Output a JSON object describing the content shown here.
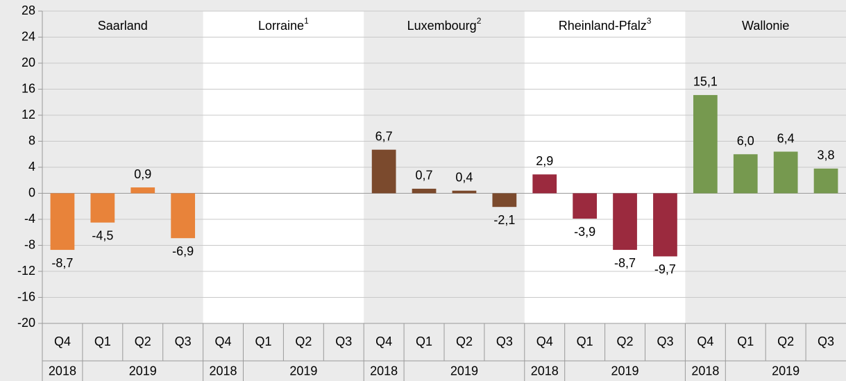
{
  "chart_data": {
    "type": "bar",
    "categories": [
      "Q4",
      "Q1",
      "Q2",
      "Q3"
    ],
    "years": [
      "2018",
      "2019"
    ],
    "ylim": [
      -20,
      28
    ],
    "yticks": [
      -20,
      -16,
      -12,
      -8,
      -4,
      0,
      4,
      8,
      12,
      16,
      20,
      24,
      28
    ],
    "grid": true,
    "series": [
      {
        "name": "Saarland",
        "color": "#e8833a",
        "values": [
          -8.7,
          -4.5,
          0.9,
          -6.9
        ],
        "value_labels": [
          "-8,7",
          "-4,5",
          "0,9",
          "-6,9"
        ]
      },
      {
        "name": "Lorraine",
        "note": "1",
        "color": "#e8833a",
        "values": [
          null,
          null,
          null,
          null
        ]
      },
      {
        "name": "Luxembourg",
        "note": "2",
        "color": "#7b4a2d",
        "values": [
          6.7,
          0.7,
          0.4,
          -2.1
        ],
        "value_labels": [
          "6,7",
          "0,7",
          "0,4",
          "-2,1"
        ]
      },
      {
        "name": "Rheinland-Pfalz",
        "note": "3",
        "color": "#9b2a3e",
        "values": [
          2.9,
          -3.9,
          -8.7,
          -9.7
        ],
        "value_labels": [
          "2,9",
          "-3,9",
          "-8,7",
          "-9,7"
        ]
      },
      {
        "name": "Wallonie",
        "color": "#76994f",
        "values": [
          15.1,
          6.0,
          6.4,
          3.8
        ],
        "value_labels": [
          "15,1",
          "6,0",
          "6,4",
          "3,8"
        ]
      }
    ]
  }
}
